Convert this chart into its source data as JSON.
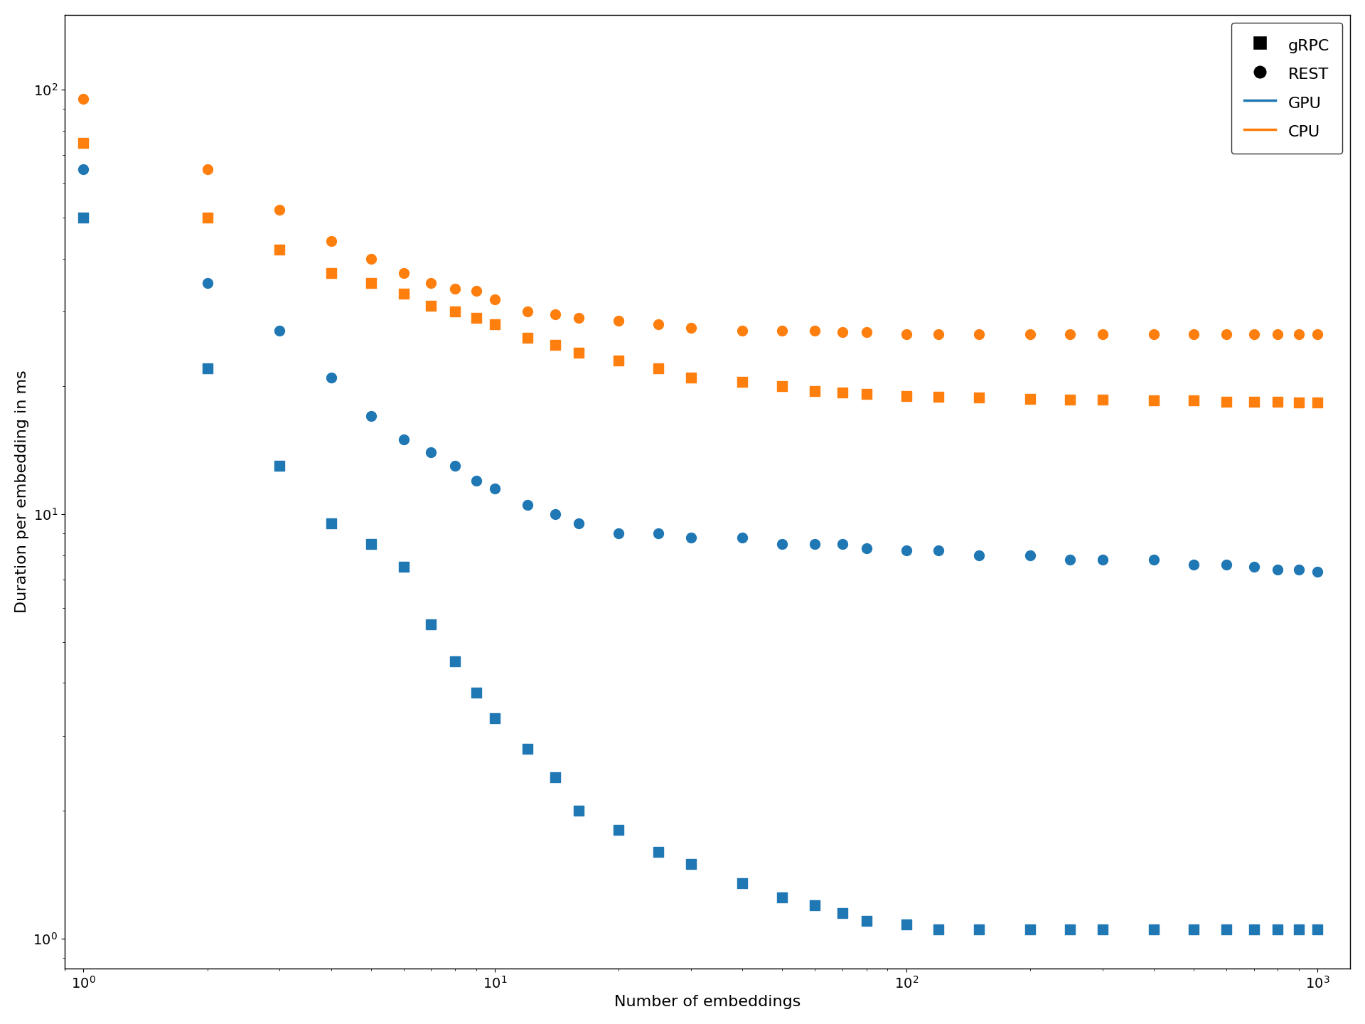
{
  "xlabel": "Number of embeddings",
  "ylabel": "Duration per embedding in ms",
  "gpu_grpc_x": [
    1,
    2,
    3,
    4,
    5,
    6,
    7,
    8,
    9,
    10,
    12,
    14,
    16,
    20,
    25,
    30,
    40,
    50,
    60,
    70,
    80,
    100,
    120,
    150,
    200,
    250,
    300,
    400,
    500,
    600,
    700,
    800,
    900,
    1000
  ],
  "gpu_grpc_y": [
    50,
    22,
    13,
    9.5,
    8.5,
    7.5,
    5.5,
    4.5,
    3.8,
    3.3,
    2.8,
    2.4,
    2.0,
    1.8,
    1.6,
    1.5,
    1.35,
    1.25,
    1.2,
    1.15,
    1.1,
    1.08,
    1.05,
    1.05,
    1.05,
    1.05,
    1.05,
    1.05,
    1.05,
    1.05,
    1.05,
    1.05,
    1.05,
    1.05
  ],
  "gpu_rest_x": [
    1,
    2,
    3,
    4,
    5,
    6,
    7,
    8,
    9,
    10,
    12,
    14,
    16,
    20,
    25,
    30,
    40,
    50,
    60,
    70,
    80,
    100,
    120,
    150,
    200,
    250,
    300,
    400,
    500,
    600,
    700,
    800,
    900,
    1000
  ],
  "gpu_rest_y": [
    65,
    35,
    27,
    21,
    17,
    15,
    14,
    13,
    12,
    11.5,
    10.5,
    10.0,
    9.5,
    9.0,
    9.0,
    8.8,
    8.8,
    8.5,
    8.5,
    8.5,
    8.3,
    8.2,
    8.2,
    8.0,
    8.0,
    7.8,
    7.8,
    7.8,
    7.6,
    7.6,
    7.5,
    7.4,
    7.4,
    7.3
  ],
  "cpu_grpc_x": [
    1,
    2,
    3,
    4,
    5,
    6,
    7,
    8,
    9,
    10,
    12,
    14,
    16,
    20,
    25,
    30,
    40,
    50,
    60,
    70,
    80,
    100,
    120,
    150,
    200,
    250,
    300,
    400,
    500,
    600,
    700,
    800,
    900,
    1000
  ],
  "cpu_grpc_y": [
    75,
    50,
    42,
    37,
    35,
    33,
    31,
    30,
    29,
    28,
    26,
    25,
    24,
    23,
    22,
    21,
    20.5,
    20,
    19.5,
    19.3,
    19.2,
    19.0,
    18.9,
    18.8,
    18.7,
    18.6,
    18.6,
    18.5,
    18.5,
    18.4,
    18.4,
    18.4,
    18.3,
    18.3
  ],
  "cpu_rest_x": [
    1,
    2,
    3,
    4,
    5,
    6,
    7,
    8,
    9,
    10,
    12,
    14,
    16,
    20,
    25,
    30,
    40,
    50,
    60,
    70,
    80,
    100,
    120,
    150,
    200,
    250,
    300,
    400,
    500,
    600,
    700,
    800,
    900,
    1000
  ],
  "cpu_rest_y": [
    95,
    65,
    52,
    44,
    40,
    37,
    35,
    34,
    33.5,
    32,
    30,
    29.5,
    29,
    28.5,
    28,
    27.5,
    27,
    27,
    27,
    26.8,
    26.8,
    26.5,
    26.5,
    26.5,
    26.5,
    26.5,
    26.5,
    26.5,
    26.5,
    26.5,
    26.5,
    26.5,
    26.5,
    26.5
  ],
  "color_blue": "#1f77b4",
  "color_orange": "#ff7f0e",
  "marker_size": 100,
  "legend_marker_size": 14,
  "legend_fontsize": 16,
  "axis_fontsize": 16,
  "tick_fontsize": 14,
  "xlim": [
    0.9,
    1200
  ],
  "ylim": [
    0.85,
    150
  ],
  "figsize": [
    19.2,
    14.4
  ],
  "dpi": 100
}
